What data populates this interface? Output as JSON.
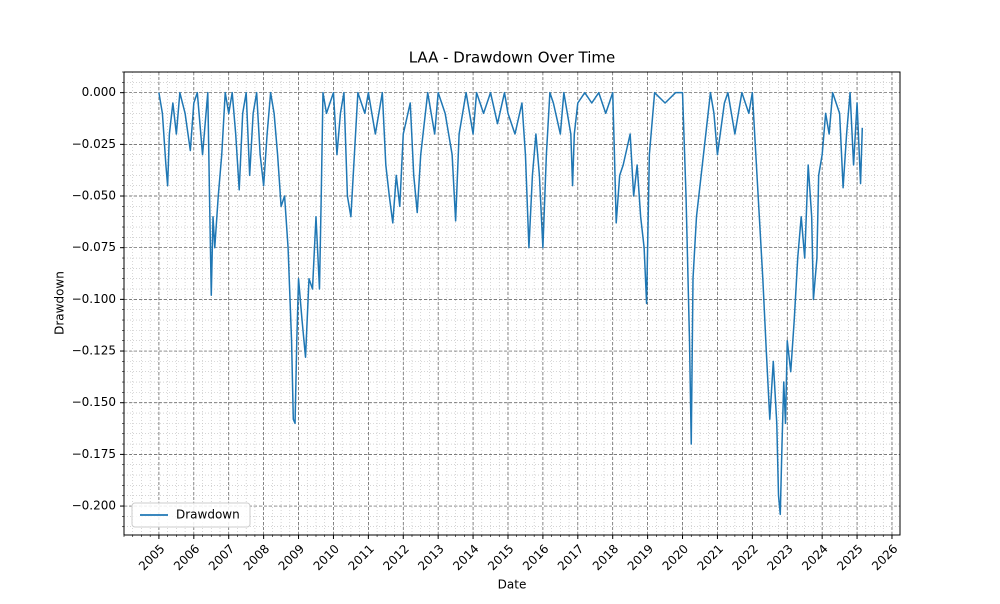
{
  "chart_data": {
    "type": "line",
    "title": "LAA - Drawdown Over Time",
    "xlabel": "Date",
    "ylabel": "Drawdown",
    "grid": true,
    "minor_grid": true,
    "legend": "lower left",
    "xlim": [
      2004.0,
      2026.23
    ],
    "xticks": [
      2005,
      2006,
      2007,
      2008,
      2009,
      2010,
      2011,
      2012,
      2013,
      2014,
      2015,
      2016,
      2017,
      2018,
      2019,
      2020,
      2021,
      2022,
      2023,
      2024,
      2025,
      2026
    ],
    "ylim": [
      -0.214,
      0.01
    ],
    "yticks": [
      {
        "value": 0,
        "label": "0.000"
      },
      {
        "value": -0.025,
        "label": "−0.025"
      },
      {
        "value": -0.05,
        "label": "−0.050"
      },
      {
        "value": -0.075,
        "label": "−0.075"
      },
      {
        "value": -0.1,
        "label": "−0.100"
      },
      {
        "value": -0.125,
        "label": "−0.125"
      },
      {
        "value": -0.15,
        "label": "−0.150"
      },
      {
        "value": -0.175,
        "label": "−0.175"
      },
      {
        "value": -0.2,
        "label": "−0.200"
      }
    ],
    "x": [
      2005.0,
      2005.1,
      2005.2,
      2005.25,
      2005.3,
      2005.4,
      2005.5,
      2005.6,
      2005.75,
      2005.9,
      2006.0,
      2006.1,
      2006.25,
      2006.35,
      2006.4,
      2006.45,
      2006.5,
      2006.55,
      2006.6,
      2006.7,
      2006.8,
      2006.9,
      2007.0,
      2007.1,
      2007.2,
      2007.3,
      2007.4,
      2007.5,
      2007.6,
      2007.7,
      2007.8,
      2007.9,
      2008.0,
      2008.1,
      2008.2,
      2008.3,
      2008.4,
      2008.5,
      2008.6,
      2008.7,
      2008.8,
      2008.85,
      2008.9,
      2008.95,
      2009.0,
      2009.1,
      2009.2,
      2009.3,
      2009.4,
      2009.5,
      2009.6,
      2009.65,
      2009.7,
      2009.8,
      2010.0,
      2010.1,
      2010.2,
      2010.3,
      2010.4,
      2010.5,
      2010.6,
      2010.7,
      2010.9,
      2011.0,
      2011.2,
      2011.4,
      2011.5,
      2011.6,
      2011.7,
      2011.8,
      2011.9,
      2012.0,
      2012.2,
      2012.3,
      2012.4,
      2012.5,
      2012.7,
      2012.9,
      2013.0,
      2013.2,
      2013.4,
      2013.5,
      2013.6,
      2013.8,
      2014.0,
      2014.1,
      2014.3,
      2014.5,
      2014.7,
      2014.9,
      2015.0,
      2015.2,
      2015.4,
      2015.5,
      2015.6,
      2015.7,
      2015.8,
      2015.9,
      2016.0,
      2016.1,
      2016.2,
      2016.3,
      2016.5,
      2016.6,
      2016.8,
      2016.85,
      2016.9,
      2017.0,
      2017.2,
      2017.4,
      2017.6,
      2017.8,
      2018.0,
      2018.05,
      2018.1,
      2018.2,
      2018.3,
      2018.5,
      2018.6,
      2018.7,
      2018.8,
      2018.9,
      2018.97,
      2019.05,
      2019.2,
      2019.5,
      2019.8,
      2020.0,
      2020.1,
      2020.2,
      2020.25,
      2020.3,
      2020.4,
      2020.6,
      2020.8,
      2020.9,
      2021.0,
      2021.2,
      2021.3,
      2021.5,
      2021.7,
      2021.9,
      2022.0,
      2022.1,
      2022.2,
      2022.3,
      2022.4,
      2022.5,
      2022.6,
      2022.7,
      2022.75,
      2022.8,
      2022.85,
      2022.9,
      2022.95,
      2023.0,
      2023.1,
      2023.2,
      2023.3,
      2023.4,
      2023.5,
      2023.6,
      2023.7,
      2023.75,
      2023.85,
      2023.9,
      2024.0,
      2024.1,
      2024.2,
      2024.3,
      2024.5,
      2024.6,
      2024.7,
      2024.8,
      2024.9,
      2025.0,
      2025.1,
      2025.15
    ],
    "series": [
      {
        "name": "Drawdown",
        "color": "#1f77b4",
        "values": [
          0,
          -0.01,
          -0.035,
          -0.045,
          -0.02,
          -0.005,
          -0.02,
          0,
          -0.01,
          -0.028,
          -0.005,
          0,
          -0.03,
          -0.01,
          0,
          -0.05,
          -0.098,
          -0.06,
          -0.075,
          -0.05,
          -0.03,
          0,
          -0.01,
          0,
          -0.02,
          -0.047,
          -0.01,
          0,
          -0.04,
          -0.01,
          0,
          -0.03,
          -0.045,
          -0.02,
          0,
          -0.01,
          -0.03,
          -0.055,
          -0.05,
          -0.075,
          -0.12,
          -0.158,
          -0.16,
          -0.12,
          -0.09,
          -0.11,
          -0.128,
          -0.09,
          -0.095,
          -0.06,
          -0.095,
          -0.05,
          0,
          -0.01,
          0,
          -0.03,
          -0.01,
          0,
          -0.05,
          -0.06,
          -0.03,
          0,
          -0.01,
          0,
          -0.02,
          0,
          -0.035,
          -0.05,
          -0.063,
          -0.04,
          -0.055,
          -0.02,
          -0.005,
          -0.04,
          -0.058,
          -0.03,
          0,
          -0.02,
          0,
          -0.01,
          -0.03,
          -0.062,
          -0.02,
          0,
          -0.02,
          0,
          -0.01,
          0,
          -0.015,
          0,
          -0.01,
          -0.02,
          -0.005,
          -0.03,
          -0.075,
          -0.04,
          -0.02,
          -0.04,
          -0.075,
          -0.03,
          0,
          -0.005,
          -0.02,
          0,
          -0.02,
          -0.045,
          -0.02,
          -0.005,
          0,
          -0.005,
          0,
          -0.01,
          0,
          -0.03,
          -0.063,
          -0.04,
          -0.035,
          -0.02,
          -0.05,
          -0.035,
          -0.06,
          -0.075,
          -0.102,
          -0.03,
          0,
          -0.005,
          0,
          0,
          -0.05,
          -0.12,
          -0.17,
          -0.09,
          -0.06,
          -0.03,
          0,
          -0.01,
          -0.03,
          -0.005,
          0,
          -0.02,
          0,
          -0.01,
          0,
          -0.03,
          -0.06,
          -0.09,
          -0.125,
          -0.158,
          -0.13,
          -0.16,
          -0.195,
          -0.204,
          -0.17,
          -0.14,
          -0.16,
          -0.12,
          -0.135,
          -0.11,
          -0.08,
          -0.06,
          -0.08,
          -0.035,
          -0.06,
          -0.1,
          -0.08,
          -0.04,
          -0.03,
          -0.01,
          -0.02,
          0,
          -0.01,
          -0.046,
          -0.02,
          0,
          -0.035,
          -0.005,
          -0.044,
          -0.017
        ]
      }
    ]
  }
}
